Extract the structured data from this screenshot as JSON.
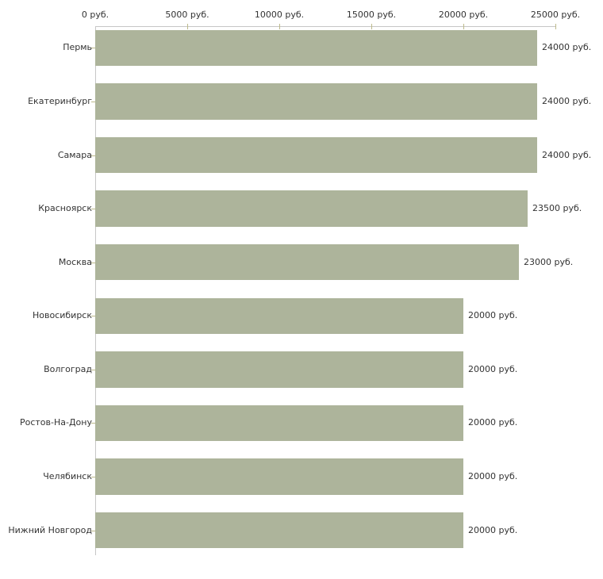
{
  "chart_data": {
    "type": "bar",
    "orientation": "horizontal",
    "title": "",
    "categories": [
      "Пермь",
      "Екатеринбург",
      "Самара",
      "Красноярск",
      "Москва",
      "Новосибирск",
      "Волгоград",
      "Ростов-На-Дону",
      "Челябинск",
      "Нижний Новгород"
    ],
    "values": [
      24000,
      24000,
      24000,
      23500,
      23000,
      20000,
      20000,
      20000,
      20000,
      20000
    ],
    "value_labels": [
      "24000 руб.",
      "24000 руб.",
      "24000 руб.",
      "23500 руб.",
      "23000 руб.",
      "20000 руб.",
      "20000 руб.",
      "20000 руб.",
      "20000 руб.",
      "20000 руб."
    ],
    "x_axis": {
      "position": "top",
      "tick_values": [
        0,
        5000,
        10000,
        15000,
        20000,
        25000
      ],
      "tick_labels": [
        "0 руб.",
        "5000 руб.",
        "10000 руб.",
        "15000 руб.",
        "20000 руб.",
        "25000 руб."
      ]
    },
    "xlim": [
      0,
      25000
    ],
    "grid": false,
    "legend": false,
    "colors": {
      "bar_fill": "#adb49b",
      "axis_line": "#c6c6c6",
      "tick_mark": "#bdba8b",
      "text": "#333333",
      "background": "#ffffff"
    }
  }
}
